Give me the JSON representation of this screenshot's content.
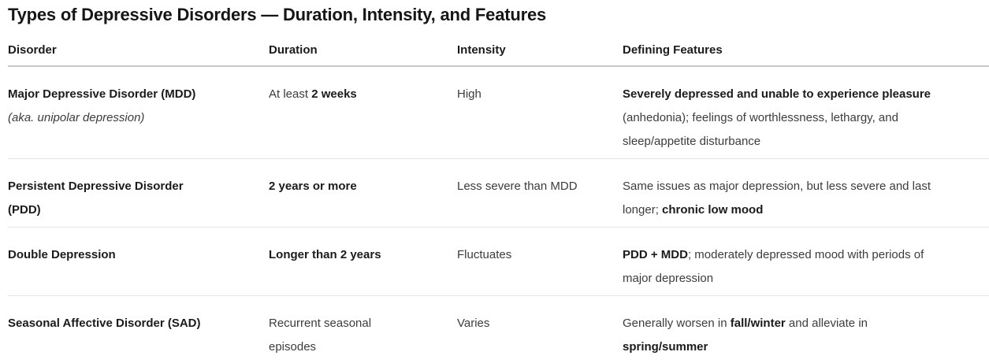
{
  "page_title": "Types of Depressive Disorders — Duration, Intensity, and Features",
  "colors": {
    "background": "#ffffff",
    "text_strong": "#1b1b1b",
    "text_body": "#3c3c3c",
    "header_rule": "#c9c9c9",
    "row_rule": "#e5e5e5"
  },
  "table": {
    "columns": [
      {
        "key": "disorder",
        "label": "Disorder"
      },
      {
        "key": "duration",
        "label": "Duration"
      },
      {
        "key": "intensity",
        "label": "Intensity"
      },
      {
        "key": "features",
        "label": "Defining Features"
      }
    ],
    "rows": [
      {
        "disorder": [
          [
            {
              "t": "Major Depressive Disorder (MDD)",
              "b": true
            }
          ],
          [
            {
              "t": "(aka. unipolar depression)",
              "i": true
            }
          ]
        ],
        "duration": [
          [
            {
              "t": "At least "
            },
            {
              "t": "2 weeks",
              "b": true
            }
          ]
        ],
        "intensity": [
          [
            {
              "t": "High"
            }
          ]
        ],
        "features": [
          [
            {
              "t": "Severely depressed and unable to experience pleasure",
              "b": true
            }
          ],
          [
            {
              "t": "(anhedonia); feelings of worthlessness, lethargy, and"
            }
          ],
          [
            {
              "t": "sleep/appetite disturbance"
            }
          ]
        ]
      },
      {
        "disorder": [
          [
            {
              "t": "Persistent Depressive Disorder",
              "b": true
            }
          ],
          [
            {
              "t": "(PDD)",
              "b": true
            }
          ]
        ],
        "duration": [
          [
            {
              "t": "2 years or more",
              "b": true
            }
          ]
        ],
        "intensity": [
          [
            {
              "t": "Less severe than MDD"
            }
          ]
        ],
        "features": [
          [
            {
              "t": "Same issues as major depression, but less severe and last"
            }
          ],
          [
            {
              "t": "longer; "
            },
            {
              "t": "chronic low mood",
              "b": true
            }
          ]
        ]
      },
      {
        "disorder": [
          [
            {
              "t": "Double Depression",
              "b": true
            }
          ]
        ],
        "duration": [
          [
            {
              "t": "Longer than 2 years",
              "b": true
            }
          ]
        ],
        "intensity": [
          [
            {
              "t": "Fluctuates"
            }
          ]
        ],
        "features": [
          [
            {
              "t": "PDD + MDD",
              "b": true
            },
            {
              "t": "; moderately depressed mood with periods of"
            }
          ],
          [
            {
              "t": "major depression"
            }
          ]
        ]
      },
      {
        "disorder": [
          [
            {
              "t": "Seasonal Affective Disorder (SAD)",
              "b": true
            }
          ]
        ],
        "duration": [
          [
            {
              "t": "Recurrent seasonal"
            }
          ],
          [
            {
              "t": "episodes"
            }
          ]
        ],
        "intensity": [
          [
            {
              "t": "Varies"
            }
          ]
        ],
        "features": [
          [
            {
              "t": "Generally worsen in "
            },
            {
              "t": "fall/winter",
              "b": true
            },
            {
              "t": " and alleviate in"
            }
          ],
          [
            {
              "t": "spring/summer",
              "b": true
            }
          ]
        ]
      }
    ]
  }
}
